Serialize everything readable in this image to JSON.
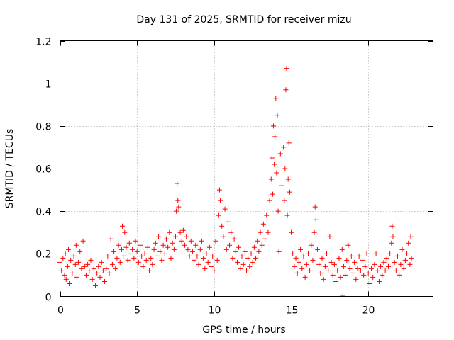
{
  "colors": {
    "series": "#ff0000",
    "grid": "#a0a0a0",
    "frame": "#000000"
  },
  "chart_data": {
    "type": "scatter",
    "title": "Day 131 of 2025, SRMTID for receiver mizu",
    "xlabel": "GPS time / hours",
    "ylabel": "SRMTID / TECUs",
    "xlim": [
      0,
      24.2
    ],
    "ylim": [
      0,
      1.2
    ],
    "xticks": [
      0,
      5,
      10,
      15,
      20
    ],
    "xtick_labels": [
      "0",
      "5",
      "10",
      "15",
      "20"
    ],
    "yticks": [
      0,
      0.2,
      0.4,
      0.6,
      0.8,
      1,
      1.2
    ],
    "ytick_labels": [
      "0",
      "0.2",
      "0.4",
      "0.6",
      "0.8",
      "1",
      "1.2"
    ],
    "grid": true,
    "marker": "+",
    "series": [
      {
        "name": "SRMTID",
        "points": [
          [
            0.0,
            0.16
          ],
          [
            0.1,
            0.12
          ],
          [
            0.2,
            0.18
          ],
          [
            0.3,
            0.1
          ],
          [
            0.35,
            0.2
          ],
          [
            0.4,
            0.08
          ],
          [
            0.5,
            0.14
          ],
          [
            0.55,
            0.22
          ],
          [
            0.6,
            0.06
          ],
          [
            0.7,
            0.17
          ],
          [
            0.8,
            0.11
          ],
          [
            0.9,
            0.19
          ],
          [
            1.0,
            0.15
          ],
          [
            1.05,
            0.24
          ],
          [
            1.1,
            0.09
          ],
          [
            1.2,
            0.16
          ],
          [
            1.3,
            0.21
          ],
          [
            1.4,
            0.13
          ],
          [
            1.5,
            0.26
          ],
          [
            1.6,
            0.14
          ],
          [
            1.7,
            0.1
          ],
          [
            1.8,
            0.15
          ],
          [
            1.9,
            0.12
          ],
          [
            2.0,
            0.17
          ],
          [
            2.1,
            0.08
          ],
          [
            2.2,
            0.13
          ],
          [
            2.3,
            0.05
          ],
          [
            2.4,
            0.11
          ],
          [
            2.5,
            0.14
          ],
          [
            2.6,
            0.09
          ],
          [
            2.7,
            0.16
          ],
          [
            2.8,
            0.12
          ],
          [
            2.9,
            0.07
          ],
          [
            3.0,
            0.13
          ],
          [
            3.1,
            0.19
          ],
          [
            3.2,
            0.11
          ],
          [
            3.3,
            0.27
          ],
          [
            3.4,
            0.15
          ],
          [
            3.5,
            0.21
          ],
          [
            3.6,
            0.13
          ],
          [
            3.7,
            0.18
          ],
          [
            3.8,
            0.24
          ],
          [
            3.9,
            0.16
          ],
          [
            4.0,
            0.22
          ],
          [
            4.05,
            0.33
          ],
          [
            4.1,
            0.19
          ],
          [
            4.2,
            0.3
          ],
          [
            4.3,
            0.23
          ],
          [
            4.4,
            0.17
          ],
          [
            4.5,
            0.25
          ],
          [
            4.6,
            0.2
          ],
          [
            4.7,
            0.22
          ],
          [
            4.8,
            0.18
          ],
          [
            4.9,
            0.26
          ],
          [
            5.0,
            0.21
          ],
          [
            5.1,
            0.16
          ],
          [
            5.2,
            0.24
          ],
          [
            5.3,
            0.19
          ],
          [
            5.4,
            0.14
          ],
          [
            5.5,
            0.2
          ],
          [
            5.6,
            0.17
          ],
          [
            5.7,
            0.23
          ],
          [
            5.8,
            0.12
          ],
          [
            5.9,
            0.18
          ],
          [
            6.0,
            0.15
          ],
          [
            6.1,
            0.22
          ],
          [
            6.2,
            0.25
          ],
          [
            6.3,
            0.19
          ],
          [
            6.4,
            0.28
          ],
          [
            6.5,
            0.21
          ],
          [
            6.6,
            0.17
          ],
          [
            6.7,
            0.24
          ],
          [
            6.8,
            0.2
          ],
          [
            6.9,
            0.27
          ],
          [
            7.0,
            0.23
          ],
          [
            7.1,
            0.3
          ],
          [
            7.2,
            0.18
          ],
          [
            7.3,
            0.25
          ],
          [
            7.4,
            0.22
          ],
          [
            7.5,
            0.28
          ],
          [
            7.55,
            0.4
          ],
          [
            7.6,
            0.53
          ],
          [
            7.65,
            0.45
          ],
          [
            7.7,
            0.42
          ],
          [
            7.8,
            0.3
          ],
          [
            7.9,
            0.26
          ],
          [
            8.0,
            0.31
          ],
          [
            8.1,
            0.24
          ],
          [
            8.2,
            0.28
          ],
          [
            8.3,
            0.22
          ],
          [
            8.4,
            0.19
          ],
          [
            8.5,
            0.26
          ],
          [
            8.6,
            0.21
          ],
          [
            8.7,
            0.17
          ],
          [
            8.8,
            0.24
          ],
          [
            8.9,
            0.19
          ],
          [
            9.0,
            0.15
          ],
          [
            9.1,
            0.22
          ],
          [
            9.2,
            0.26
          ],
          [
            9.3,
            0.18
          ],
          [
            9.4,
            0.13
          ],
          [
            9.5,
            0.2
          ],
          [
            9.6,
            0.16
          ],
          [
            9.7,
            0.23
          ],
          [
            9.8,
            0.14
          ],
          [
            9.9,
            0.19
          ],
          [
            10.0,
            0.12
          ],
          [
            10.1,
            0.26
          ],
          [
            10.2,
            0.17
          ],
          [
            10.3,
            0.38
          ],
          [
            10.35,
            0.5
          ],
          [
            10.4,
            0.45
          ],
          [
            10.5,
            0.33
          ],
          [
            10.6,
            0.28
          ],
          [
            10.7,
            0.41
          ],
          [
            10.8,
            0.22
          ],
          [
            10.9,
            0.35
          ],
          [
            11.0,
            0.24
          ],
          [
            11.1,
            0.3
          ],
          [
            11.2,
            0.18
          ],
          [
            11.3,
            0.27
          ],
          [
            11.4,
            0.21
          ],
          [
            11.5,
            0.16
          ],
          [
            11.6,
            0.23
          ],
          [
            11.7,
            0.13
          ],
          [
            11.8,
            0.19
          ],
          [
            11.9,
            0.15
          ],
          [
            12.0,
            0.21
          ],
          [
            12.1,
            0.12
          ],
          [
            12.2,
            0.18
          ],
          [
            12.3,
            0.14
          ],
          [
            12.4,
            0.2
          ],
          [
            12.5,
            0.16
          ],
          [
            12.6,
            0.23
          ],
          [
            12.7,
            0.18
          ],
          [
            12.8,
            0.26
          ],
          [
            12.9,
            0.21
          ],
          [
            13.0,
            0.3
          ],
          [
            13.1,
            0.24
          ],
          [
            13.2,
            0.34
          ],
          [
            13.3,
            0.27
          ],
          [
            13.4,
            0.38
          ],
          [
            13.5,
            0.3
          ],
          [
            13.6,
            0.45
          ],
          [
            13.7,
            0.55
          ],
          [
            13.75,
            0.65
          ],
          [
            13.8,
            0.48
          ],
          [
            13.85,
            0.8
          ],
          [
            13.9,
            0.62
          ],
          [
            13.95,
            0.75
          ],
          [
            14.0,
            0.93
          ],
          [
            14.05,
            0.58
          ],
          [
            14.1,
            0.85
          ],
          [
            14.15,
            0.4
          ],
          [
            14.2,
            0.21
          ],
          [
            14.3,
            0.67
          ],
          [
            14.4,
            0.52
          ],
          [
            14.5,
            0.7
          ],
          [
            14.55,
            0.45
          ],
          [
            14.6,
            0.6
          ],
          [
            14.65,
            0.97
          ],
          [
            14.7,
            1.07
          ],
          [
            14.75,
            0.38
          ],
          [
            14.8,
            0.55
          ],
          [
            14.85,
            0.72
          ],
          [
            14.9,
            0.49
          ],
          [
            15.0,
            0.3
          ],
          [
            15.1,
            0.2
          ],
          [
            15.2,
            0.14
          ],
          [
            15.3,
            0.18
          ],
          [
            15.4,
            0.11
          ],
          [
            15.5,
            0.16
          ],
          [
            15.6,
            0.22
          ],
          [
            15.7,
            0.13
          ],
          [
            15.8,
            0.19
          ],
          [
            15.9,
            0.09
          ],
          [
            16.0,
            0.15
          ],
          [
            16.1,
            0.2
          ],
          [
            16.2,
            0.12
          ],
          [
            16.3,
            0.24
          ],
          [
            16.4,
            0.17
          ],
          [
            16.5,
            0.3
          ],
          [
            16.55,
            0.42
          ],
          [
            16.6,
            0.36
          ],
          [
            16.7,
            0.22
          ],
          [
            16.8,
            0.15
          ],
          [
            16.9,
            0.11
          ],
          [
            17.0,
            0.18
          ],
          [
            17.1,
            0.08
          ],
          [
            17.2,
            0.14
          ],
          [
            17.3,
            0.2
          ],
          [
            17.4,
            0.12
          ],
          [
            17.5,
            0.28
          ],
          [
            17.6,
            0.16
          ],
          [
            17.7,
            0.1
          ],
          [
            17.8,
            0.15
          ],
          [
            17.9,
            0.07
          ],
          [
            18.0,
            0.12
          ],
          [
            18.1,
            0.18
          ],
          [
            18.2,
            0.09
          ],
          [
            18.3,
            0.22
          ],
          [
            18.35,
            0.005
          ],
          [
            18.4,
            0.14
          ],
          [
            18.5,
            0.1
          ],
          [
            18.6,
            0.17
          ],
          [
            18.7,
            0.24
          ],
          [
            18.8,
            0.13
          ],
          [
            18.9,
            0.19
          ],
          [
            19.0,
            0.11
          ],
          [
            19.1,
            0.16
          ],
          [
            19.2,
            0.08
          ],
          [
            19.3,
            0.13
          ],
          [
            19.4,
            0.19
          ],
          [
            19.5,
            0.12
          ],
          [
            19.6,
            0.17
          ],
          [
            19.7,
            0.1
          ],
          [
            19.8,
            0.14
          ],
          [
            19.9,
            0.2
          ],
          [
            20.0,
            0.11
          ],
          [
            20.1,
            0.06
          ],
          [
            20.2,
            0.13
          ],
          [
            20.3,
            0.09
          ],
          [
            20.4,
            0.15
          ],
          [
            20.5,
            0.2
          ],
          [
            20.6,
            0.12
          ],
          [
            20.7,
            0.07
          ],
          [
            20.8,
            0.14
          ],
          [
            20.9,
            0.1
          ],
          [
            21.0,
            0.16
          ],
          [
            21.1,
            0.12
          ],
          [
            21.2,
            0.18
          ],
          [
            21.3,
            0.14
          ],
          [
            21.4,
            0.2
          ],
          [
            21.5,
            0.25
          ],
          [
            21.55,
            0.33
          ],
          [
            21.6,
            0.28
          ],
          [
            21.7,
            0.16
          ],
          [
            21.8,
            0.12
          ],
          [
            21.9,
            0.19
          ],
          [
            22.0,
            0.1
          ],
          [
            22.1,
            0.15
          ],
          [
            22.2,
            0.22
          ],
          [
            22.3,
            0.13
          ],
          [
            22.4,
            0.17
          ],
          [
            22.5,
            0.2
          ],
          [
            22.6,
            0.25
          ],
          [
            22.7,
            0.15
          ],
          [
            22.75,
            0.28
          ],
          [
            22.8,
            0.18
          ]
        ]
      }
    ]
  }
}
